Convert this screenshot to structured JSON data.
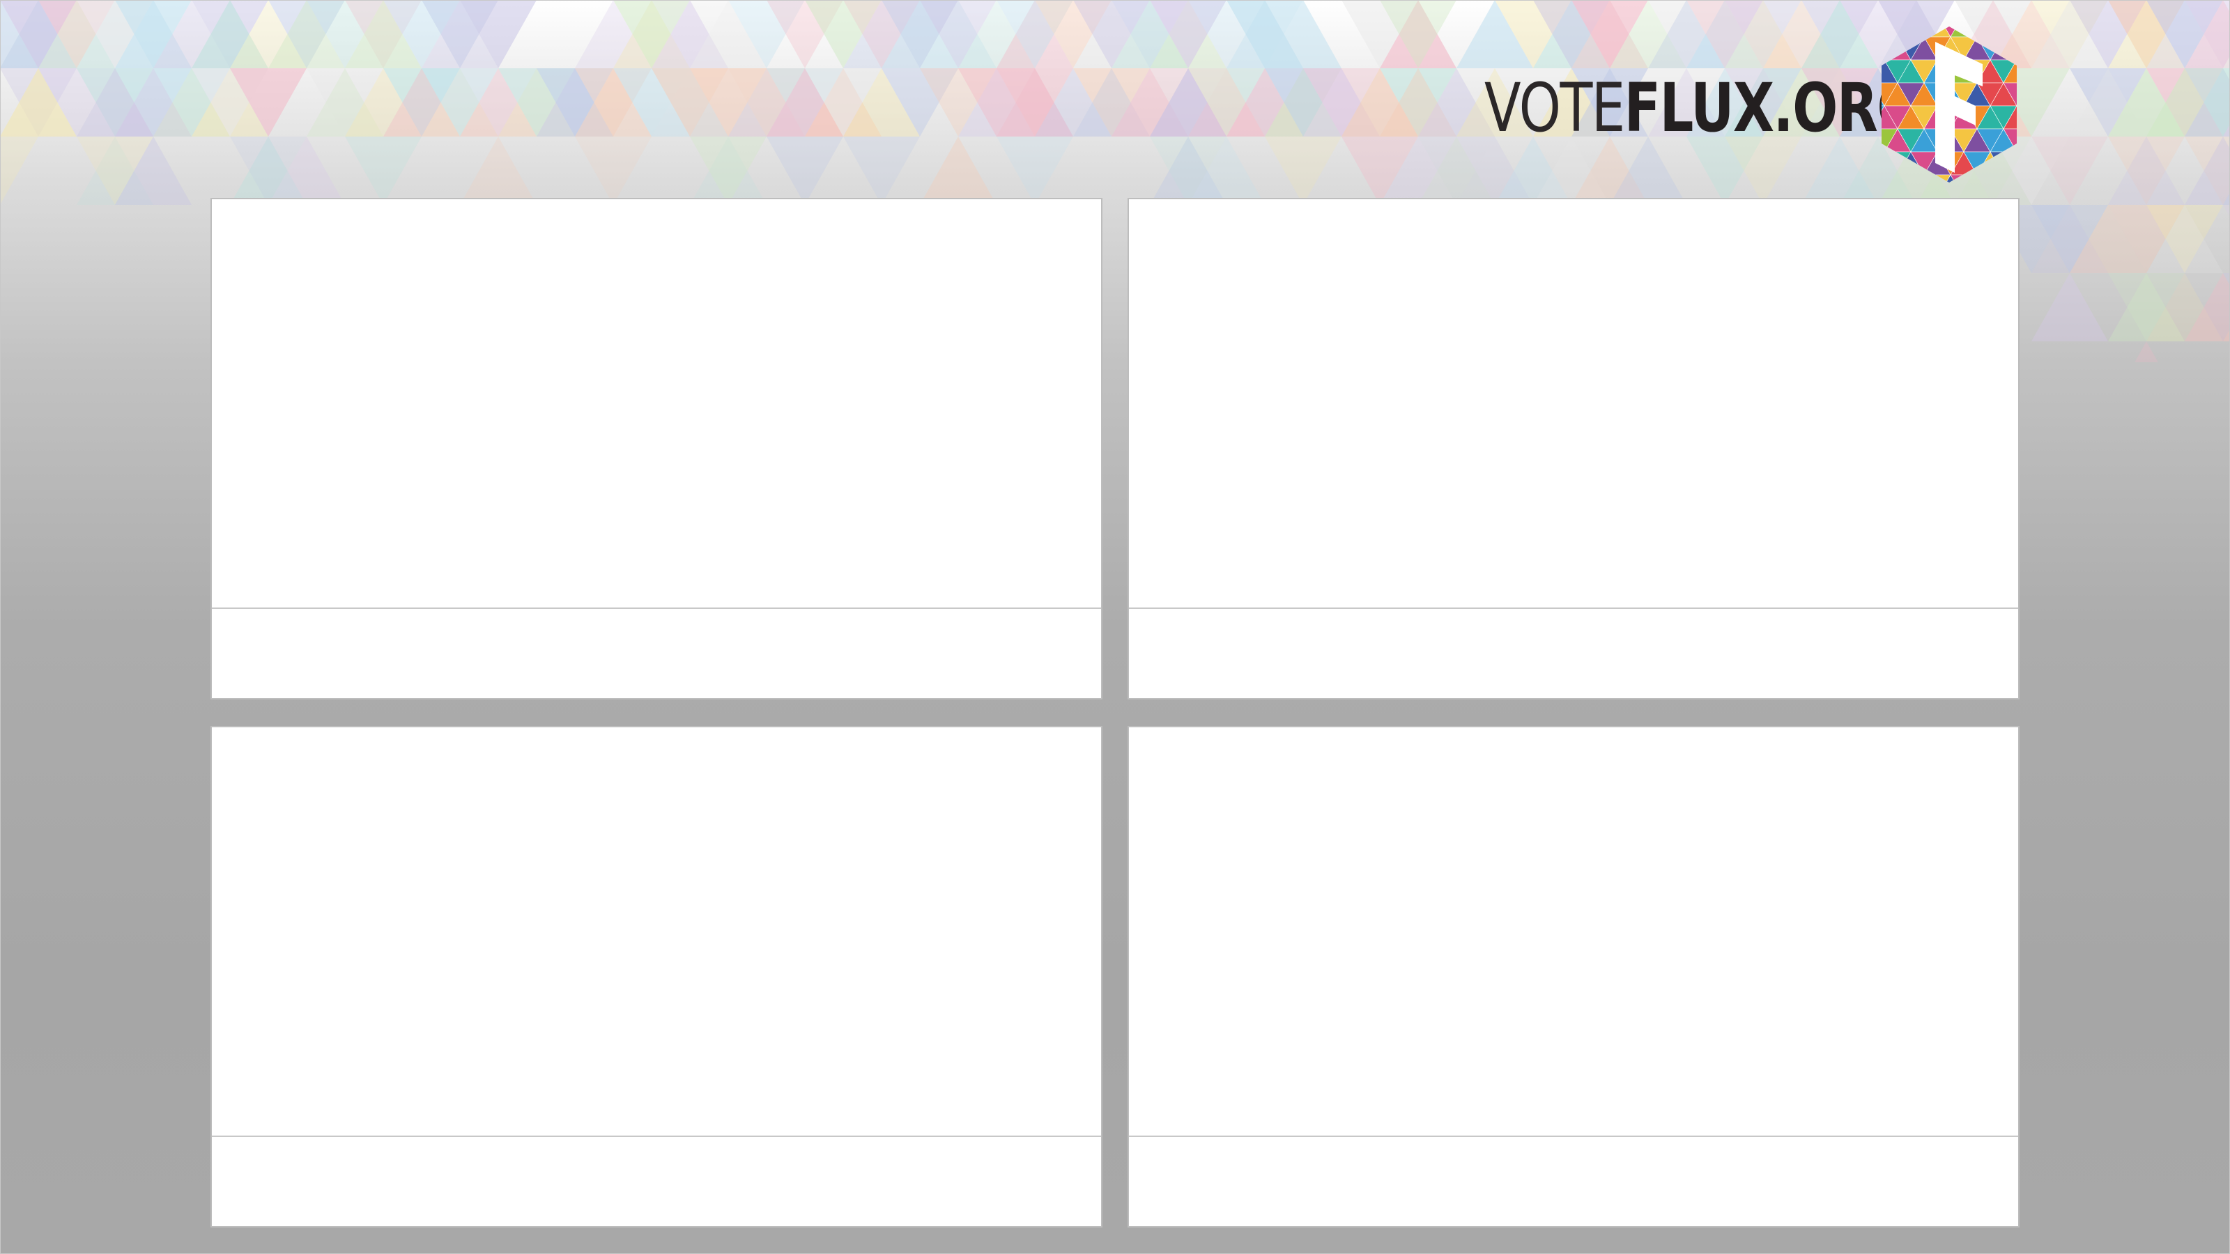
{
  "brand": {
    "name_light": "VOTE",
    "name_bold": "FLUX.ORG",
    "logo_icon": "flux-hexagon-logo-icon",
    "colors": [
      "#e5484d",
      "#f28c28",
      "#f4c542",
      "#9bc53d",
      "#2bb5a3",
      "#3aa0d8",
      "#3c5ba9",
      "#7e4fa0",
      "#d94b8a"
    ]
  },
  "panels": [
    {
      "id": "top-left",
      "caption": ""
    },
    {
      "id": "top-right",
      "caption": ""
    },
    {
      "id": "bottom-left",
      "caption": ""
    },
    {
      "id": "bottom-right",
      "caption": ""
    }
  ]
}
